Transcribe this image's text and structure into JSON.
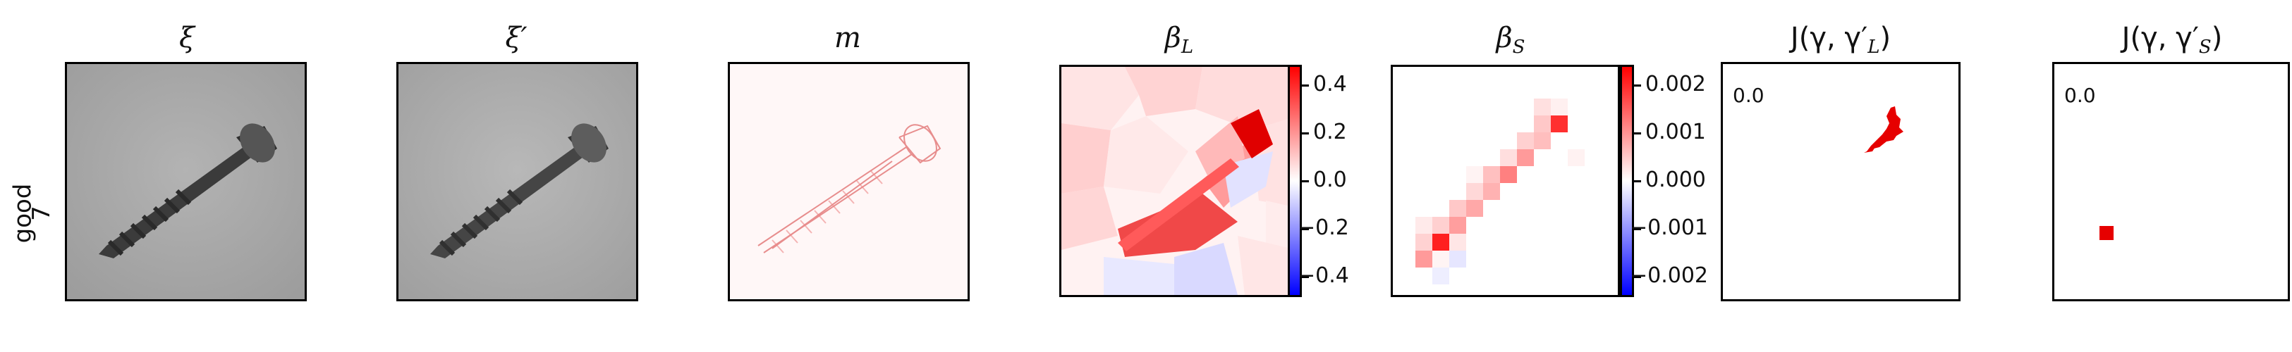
{
  "row_label": {
    "line1": "good",
    "line2": "7"
  },
  "panels": {
    "xi": {
      "title": "ξ"
    },
    "xi_prime": {
      "title": "ξ′"
    },
    "m": {
      "title": "m"
    },
    "beta_L": {
      "title_base": "β",
      "title_sub": "L",
      "colorbar_ticks": [
        "0.4",
        "0.2",
        "0.0",
        "−0.2",
        "−0.4"
      ]
    },
    "beta_S": {
      "title_base": "β",
      "title_sub": "S",
      "colorbar_ticks": [
        "0.002",
        "0.001",
        "0.000",
        "−0.001",
        "−0.002"
      ]
    },
    "J_L": {
      "title": "J(γ, γ′",
      "title_sub": "L",
      "title_end": ")",
      "value": "0.0"
    },
    "J_S": {
      "title": "J(γ, γ′",
      "title_sub": "S",
      "title_end": ")",
      "value": "0.0"
    }
  },
  "colors": {
    "positive": "#ff0000",
    "negative": "#0000ff",
    "neutral": "#ffffff"
  }
}
